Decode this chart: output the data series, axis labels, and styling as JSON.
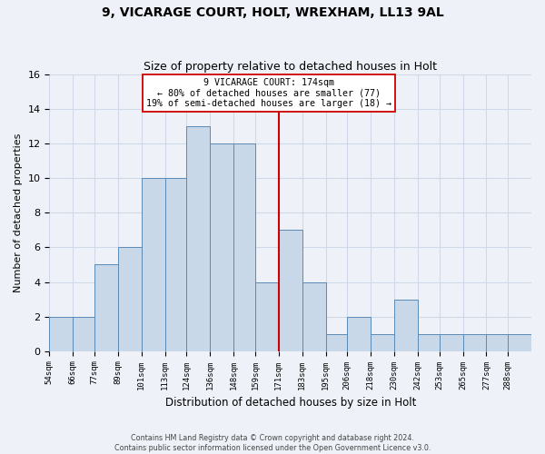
{
  "title1": "9, VICARAGE COURT, HOLT, WREXHAM, LL13 9AL",
  "title2": "Size of property relative to detached houses in Holt",
  "xlabel": "Distribution of detached houses by size in Holt",
  "ylabel": "Number of detached properties",
  "bin_labels": [
    "54sqm",
    "66sqm",
    "77sqm",
    "89sqm",
    "101sqm",
    "113sqm",
    "124sqm",
    "136sqm",
    "148sqm",
    "159sqm",
    "171sqm",
    "183sqm",
    "195sqm",
    "206sqm",
    "218sqm",
    "230sqm",
    "242sqm",
    "253sqm",
    "265sqm",
    "277sqm",
    "288sqm"
  ],
  "bin_edges": [
    54,
    66,
    77,
    89,
    101,
    113,
    124,
    136,
    148,
    159,
    171,
    183,
    195,
    206,
    218,
    230,
    242,
    253,
    265,
    277,
    288,
    300
  ],
  "bar_heights": [
    2,
    2,
    5,
    6,
    10,
    10,
    13,
    12,
    12,
    4,
    7,
    4,
    1,
    2,
    1,
    3,
    1,
    1,
    1,
    1,
    1
  ],
  "bar_color": "#c8d8e8",
  "bar_edge_color": "#5a8ab5",
  "vline_x": 171,
  "vline_color": "#cc0000",
  "annotation_text": "9 VICARAGE COURT: 174sqm\n← 80% of detached houses are smaller (77)\n19% of semi-detached houses are larger (18) →",
  "annotation_box_color": "white",
  "annotation_box_edge": "#cc0000",
  "ylim": [
    0,
    16
  ],
  "yticks": [
    0,
    2,
    4,
    6,
    8,
    10,
    12,
    14,
    16
  ],
  "grid_color": "#d0d8e8",
  "footer1": "Contains HM Land Registry data © Crown copyright and database right 2024.",
  "footer2": "Contains public sector information licensed under the Open Government Licence v3.0.",
  "bg_color": "#eef2f8",
  "title1_fontsize": 10,
  "title2_fontsize": 9
}
